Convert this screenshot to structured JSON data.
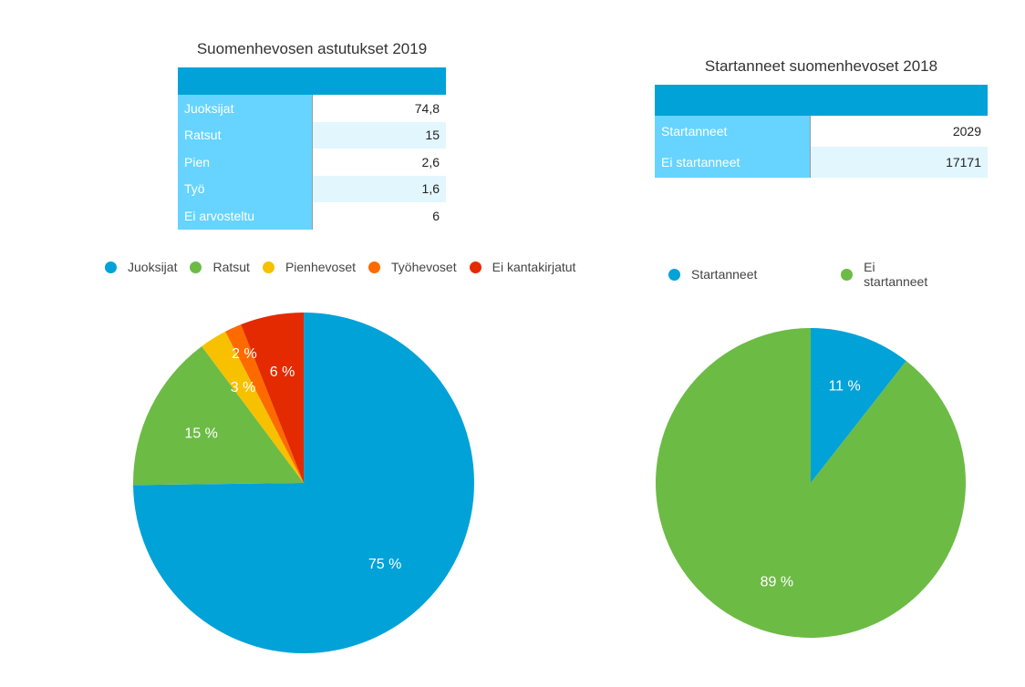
{
  "tables": [
    {
      "title": "Suomenhevosen astutukset 2019",
      "rows": [
        {
          "label": "Juoksijat",
          "value": "74,8"
        },
        {
          "label": "Ratsut",
          "value": "15"
        },
        {
          "label": "Pien",
          "value": "2,6"
        },
        {
          "label": "Työ",
          "value": "1,6"
        },
        {
          "label": "Ei arvosteltu",
          "value": "6"
        }
      ]
    },
    {
      "title": "Startanneet suomenhevoset 2018",
      "rows": [
        {
          "label": "Startanneet",
          "value": "2029"
        },
        {
          "label": "Ei startanneet",
          "value": "17171"
        }
      ]
    }
  ],
  "chart_data": [
    {
      "type": "pie",
      "legend_placement": "top",
      "slices": [
        {
          "name": "Juoksijat",
          "value": 74.8,
          "label": "75 %",
          "color": "#00a2d8"
        },
        {
          "name": "Ratsut",
          "value": 15,
          "label": "15 %",
          "color": "#6cbb45"
        },
        {
          "name": "Pienhevoset",
          "value": 2.6,
          "label": "3 %",
          "color": "#f7c100"
        },
        {
          "name": "Työhevoset",
          "value": 1.6,
          "label": "2 %",
          "color": "#fd6a00"
        },
        {
          "name": "Ei kantakirjatut",
          "value": 6,
          "label": "6 %",
          "color": "#e42a00"
        }
      ]
    },
    {
      "type": "pie",
      "legend_placement": "top",
      "slices": [
        {
          "name": "Startanneet",
          "value": 2029,
          "label": "11 %",
          "color": "#00a2d8"
        },
        {
          "name": "Ei startanneet",
          "value": 17171,
          "label": "89 %",
          "color": "#6cbb45"
        }
      ]
    }
  ]
}
